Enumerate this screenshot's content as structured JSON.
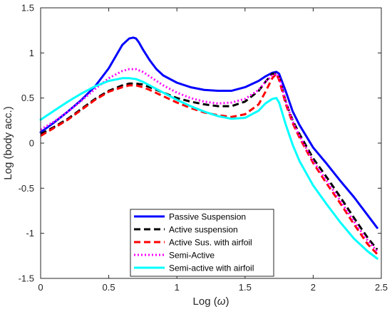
{
  "chart_data": {
    "type": "line",
    "xlabel": "Log (",
    "xlabel_symbol": "ω",
    "xlabel_close": ")",
    "ylabel": "Log (body acc.)",
    "xlim": [
      0,
      2.5
    ],
    "ylim": [
      -1.5,
      1.5
    ],
    "xticks": [
      0,
      0.5,
      1,
      1.5,
      2,
      2.5
    ],
    "xtick_labels": [
      "0",
      "0.5",
      "1",
      "1.5",
      "2",
      "2.5"
    ],
    "yticks": [
      -1.5,
      -1,
      -0.5,
      0,
      0.5,
      1,
      1.5
    ],
    "ytick_labels": [
      "-1.5",
      "-1",
      "-0.5",
      "0",
      "0.5",
      "1",
      "1.5"
    ],
    "grid": false,
    "legend_position": "bottom-center",
    "series": [
      {
        "name": "Passive Suspension",
        "color": "#0000ff",
        "style": "solid",
        "x": [
          0,
          0.1,
          0.2,
          0.3,
          0.4,
          0.5,
          0.55,
          0.6,
          0.65,
          0.68,
          0.7,
          0.72,
          0.75,
          0.8,
          0.85,
          0.9,
          1.0,
          1.1,
          1.2,
          1.3,
          1.4,
          1.5,
          1.6,
          1.65,
          1.7,
          1.73,
          1.75,
          1.8,
          1.85,
          1.9,
          2.0,
          2.1,
          2.2,
          2.3,
          2.4,
          2.47
        ],
        "y": [
          0.12,
          0.23,
          0.35,
          0.48,
          0.63,
          0.83,
          0.96,
          1.09,
          1.16,
          1.17,
          1.16,
          1.12,
          1.04,
          0.92,
          0.82,
          0.75,
          0.67,
          0.62,
          0.59,
          0.58,
          0.58,
          0.62,
          0.69,
          0.74,
          0.78,
          0.79,
          0.77,
          0.57,
          0.35,
          0.2,
          -0.05,
          -0.23,
          -0.42,
          -0.6,
          -0.8,
          -0.94
        ]
      },
      {
        "name": "Active suspension",
        "color": "#000000",
        "style": "dashed",
        "x": [
          0,
          0.1,
          0.2,
          0.3,
          0.4,
          0.5,
          0.6,
          0.65,
          0.7,
          0.75,
          0.8,
          0.9,
          1.0,
          1.1,
          1.2,
          1.3,
          1.4,
          1.5,
          1.6,
          1.65,
          1.7,
          1.73,
          1.75,
          1.8,
          1.85,
          1.9,
          2.0,
          2.1,
          2.2,
          2.3,
          2.4,
          2.47
        ],
        "y": [
          0.1,
          0.18,
          0.27,
          0.38,
          0.49,
          0.58,
          0.64,
          0.66,
          0.66,
          0.65,
          0.62,
          0.56,
          0.5,
          0.46,
          0.43,
          0.41,
          0.41,
          0.46,
          0.58,
          0.68,
          0.77,
          0.77,
          0.73,
          0.45,
          0.25,
          0.1,
          -0.17,
          -0.38,
          -0.6,
          -0.83,
          -1.05,
          -1.18
        ]
      },
      {
        "name": "Active Sus. with airfoil",
        "color": "#ff0000",
        "style": "dashed",
        "x": [
          0,
          0.1,
          0.2,
          0.3,
          0.4,
          0.5,
          0.6,
          0.65,
          0.7,
          0.75,
          0.8,
          0.9,
          1.0,
          1.1,
          1.2,
          1.3,
          1.4,
          1.5,
          1.6,
          1.65,
          1.7,
          1.73,
          1.75,
          1.8,
          1.85,
          1.9,
          2.0,
          2.1,
          2.2,
          2.3,
          2.4,
          2.47
        ],
        "y": [
          0.08,
          0.17,
          0.26,
          0.37,
          0.48,
          0.57,
          0.62,
          0.64,
          0.64,
          0.62,
          0.59,
          0.52,
          0.45,
          0.39,
          0.34,
          0.31,
          0.29,
          0.32,
          0.43,
          0.57,
          0.72,
          0.77,
          0.7,
          0.43,
          0.22,
          0.06,
          -0.22,
          -0.45,
          -0.67,
          -0.9,
          -1.12,
          -1.23
        ]
      },
      {
        "name": "Semi-Active",
        "color": "#ff00ff",
        "style": "dotted",
        "x": [
          0,
          0.1,
          0.2,
          0.3,
          0.4,
          0.5,
          0.6,
          0.65,
          0.7,
          0.75,
          0.8,
          0.9,
          1.0,
          1.1,
          1.2,
          1.3,
          1.4,
          1.5,
          1.6,
          1.65,
          1.7,
          1.73,
          1.75,
          1.8,
          1.85,
          1.9,
          2.0,
          2.1,
          2.2,
          2.3,
          2.4,
          2.47
        ],
        "y": [
          0.15,
          0.24,
          0.35,
          0.47,
          0.6,
          0.72,
          0.8,
          0.82,
          0.82,
          0.79,
          0.74,
          0.64,
          0.56,
          0.5,
          0.46,
          0.44,
          0.45,
          0.49,
          0.59,
          0.68,
          0.75,
          0.77,
          0.73,
          0.46,
          0.24,
          0.08,
          -0.2,
          -0.42,
          -0.64,
          -0.87,
          -1.08,
          -1.2
        ]
      },
      {
        "name": "Semi-active with airfoil",
        "color": "#00ffff",
        "style": "solid",
        "x": [
          0,
          0.1,
          0.2,
          0.3,
          0.4,
          0.5,
          0.6,
          0.65,
          0.7,
          0.75,
          0.8,
          0.9,
          1.0,
          1.1,
          1.2,
          1.3,
          1.4,
          1.5,
          1.6,
          1.65,
          1.7,
          1.73,
          1.75,
          1.8,
          1.85,
          1.9,
          2.0,
          2.1,
          2.2,
          2.3,
          2.4,
          2.47
        ],
        "y": [
          0.26,
          0.36,
          0.46,
          0.55,
          0.63,
          0.69,
          0.72,
          0.72,
          0.71,
          0.68,
          0.64,
          0.56,
          0.48,
          0.41,
          0.35,
          0.3,
          0.27,
          0.28,
          0.36,
          0.44,
          0.49,
          0.5,
          0.45,
          0.2,
          -0.02,
          -0.2,
          -0.47,
          -0.68,
          -0.88,
          -1.06,
          -1.2,
          -1.28
        ]
      }
    ]
  }
}
